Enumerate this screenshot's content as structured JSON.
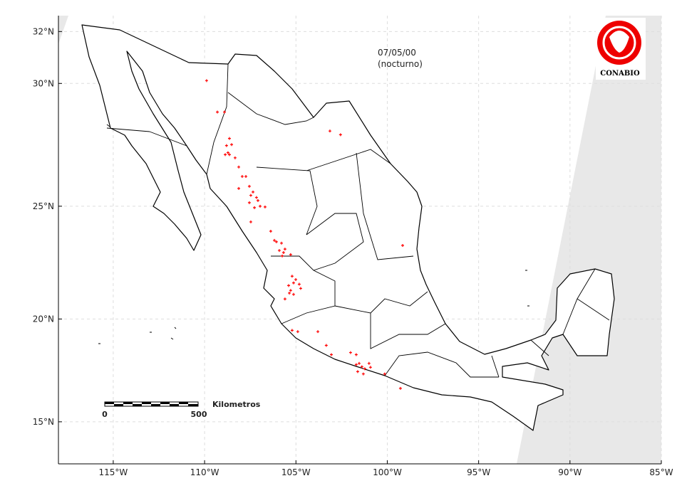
{
  "chart_data": {
    "type": "map",
    "date": "07/05/00",
    "subtitle": "(nocturno)",
    "logo": "CONABIO",
    "xlim": [
      -118,
      -85
    ],
    "xticks": [
      {
        "value": -115,
        "label": "115°W"
      },
      {
        "value": -110,
        "label": "110°W"
      },
      {
        "value": -105,
        "label": "105°W"
      },
      {
        "value": -100,
        "label": "100°W"
      },
      {
        "value": -95,
        "label": "95°W"
      },
      {
        "value": -90,
        "label": "90°W"
      },
      {
        "value": -85,
        "label": "85°W"
      }
    ],
    "ylim": [
      12.8,
      32.6
    ],
    "yticks": [
      {
        "value": 15,
        "label": "15°N"
      },
      {
        "value": 20,
        "label": "20°N"
      },
      {
        "value": 25,
        "label": "25°N"
      },
      {
        "value": 30,
        "label": "30°N"
      },
      {
        "value": 32,
        "label": "32°N"
      }
    ],
    "grid": true,
    "scale_bar": {
      "label": "Kilometros",
      "ticks": [
        "0",
        "500"
      ]
    },
    "points": {
      "color": "#ff0000",
      "lon": [
        -109.89,
        -109.3,
        -108.91,
        -108.64,
        -108.8,
        -108.52,
        -108.72,
        -108.64,
        -108.87,
        -108.33,
        -108.13,
        -107.94,
        -107.74,
        -108.13,
        -107.55,
        -107.35,
        -107.47,
        -107.16,
        -107.55,
        -107.08,
        -107.27,
        -106.96,
        -106.69,
        -107.47,
        -106.38,
        -106.18,
        -106.07,
        -105.79,
        -105.91,
        -105.6,
        -105.68,
        -105.29,
        -105.75,
        -105.21,
        -105.01,
        -105.13,
        -105.4,
        -105.29,
        -104.82,
        -104.74,
        -105.36,
        -105.13,
        -105.6,
        -105.21,
        -104.9,
        -103.8,
        -103.34,
        -103.06,
        -102.01,
        -101.7,
        -101.7,
        -101.54,
        -101.39,
        -101.0,
        -100.92,
        -101.62,
        -101.23,
        -101.31,
        -100.14,
        -99.28,
        -99.16,
        -103.14,
        -102.56
      ],
      "lat": [
        30.11,
        28.87,
        28.87,
        27.81,
        27.52,
        27.56,
        27.23,
        27.15,
        27.15,
        27.02,
        26.64,
        26.25,
        26.25,
        25.75,
        25.84,
        25.6,
        25.46,
        25.37,
        25.15,
        25.24,
        24.94,
        25.0,
        24.97,
        24.33,
        23.93,
        23.53,
        23.47,
        23.41,
        23.09,
        23.15,
        23.0,
        22.91,
        22.85,
        21.95,
        21.8,
        21.65,
        21.53,
        21.31,
        21.59,
        21.4,
        21.19,
        21.13,
        20.92,
        19.47,
        19.41,
        19.41,
        18.76,
        18.32,
        18.42,
        18.32,
        17.84,
        17.9,
        17.74,
        17.9,
        17.71,
        17.5,
        17.64,
        17.39,
        17.39,
        16.68,
        23.31,
        28.11,
        27.96
      ]
    }
  }
}
